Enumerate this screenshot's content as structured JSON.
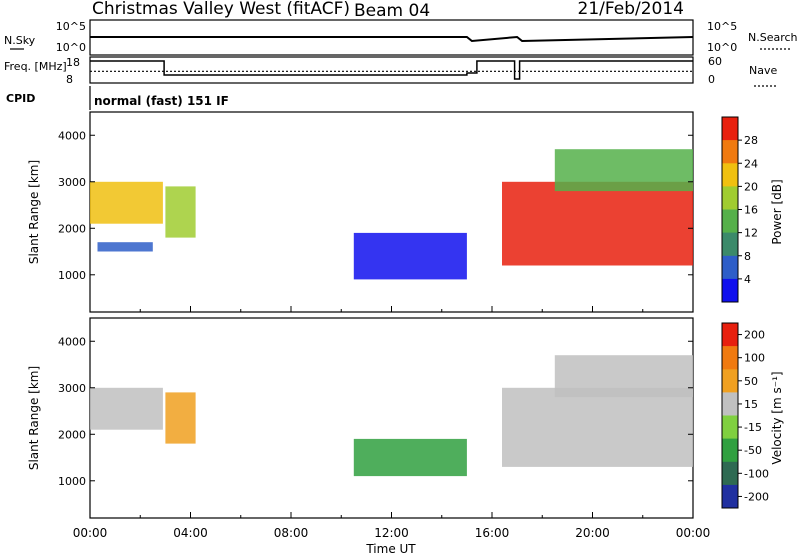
{
  "header": {
    "title": "Christmas Valley West (fitACF)",
    "beam": "Beam 04",
    "date": "21/Feb/2014"
  },
  "colors": {
    "frame": "#000000",
    "low_power_blue": "#1f3fc4",
    "high_power_red": "#e8200e",
    "ground_scatter_grey": "#c0c0c0"
  },
  "chart_data": [
    {
      "type": "line",
      "name": "noise-panel",
      "ylabel_left": "N.Sky",
      "ylabel_right": "N.Search",
      "yticks_left": [
        "10^5",
        "10^0"
      ],
      "yticks_right": [
        "10^5",
        "10^0"
      ],
      "series": [
        {
          "name": "N.Sky",
          "x": [
            0,
            15.0,
            15.2,
            17.0,
            17.2,
            24
          ],
          "y": [
            1.2,
            1.2,
            0.6,
            1.2,
            0.6,
            1.2
          ]
        }
      ]
    },
    {
      "type": "line",
      "name": "freq-panel",
      "ylabel_left": "Freq. [MHz]",
      "ylabel_right": "Nave",
      "yticks_left": [
        "18",
        "8"
      ],
      "yticks_right": [
        "60",
        "0"
      ],
      "series": [
        {
          "name": "Freq",
          "x": [
            0,
            2.95,
            2.95,
            15.0,
            15.0,
            15.4,
            15.4,
            16.9,
            16.9,
            17.1,
            17.1,
            24
          ],
          "y": [
            17,
            17,
            10,
            10,
            11,
            11,
            17,
            17,
            8,
            8,
            17,
            17
          ]
        },
        {
          "name": "Nave",
          "x": [
            0,
            24
          ],
          "y": [
            28,
            28
          ]
        }
      ]
    },
    {
      "type": "text",
      "name": "cpid",
      "label": "CPID",
      "value": "normal (fast) 151 IF"
    },
    {
      "type": "heatmap",
      "name": "power",
      "ylabel": "Slant Range [km]",
      "xlim": [
        0,
        24
      ],
      "ylim": [
        200,
        4500
      ],
      "yticks": [
        1000,
        2000,
        3000,
        4000
      ],
      "colorbar": {
        "label": "Power [dB]",
        "ticks": [
          "4",
          "8",
          "12",
          "16",
          "20",
          "24",
          "28"
        ],
        "colors": [
          "#1010ee",
          "#2e5ec8",
          "#3b8a6a",
          "#55b04a",
          "#a0cc30",
          "#f0c010",
          "#f07a10",
          "#e8200e"
        ]
      },
      "regions": [
        {
          "x": [
            0,
            2.9
          ],
          "range": [
            2100,
            3000
          ],
          "level": 5
        },
        {
          "x": [
            3.0,
            4.2
          ],
          "range": [
            1800,
            2900
          ],
          "level": 4
        },
        {
          "x": [
            0.3,
            2.5
          ],
          "range": [
            1500,
            1700
          ],
          "level": 1
        },
        {
          "x": [
            10.5,
            15.0
          ],
          "range": [
            900,
            1900
          ],
          "level": 0
        },
        {
          "x": [
            16.4,
            24
          ],
          "range": [
            1200,
            3000
          ],
          "level": 7
        },
        {
          "x": [
            18.5,
            24
          ],
          "range": [
            2800,
            3700
          ],
          "level": 3
        }
      ]
    },
    {
      "type": "heatmap",
      "name": "velocity",
      "ylabel": "Slant Range [km]",
      "xlim": [
        0,
        24
      ],
      "ylim": [
        200,
        4500
      ],
      "yticks": [
        1000,
        2000,
        3000,
        4000
      ],
      "xticks": [
        "00:00",
        "04:00",
        "08:00",
        "12:00",
        "16:00",
        "20:00",
        "00:00"
      ],
      "xlabel": "Time UT",
      "colorbar": {
        "label": "Velocity [m s⁻¹]",
        "ticks": [
          "200",
          "100",
          "50",
          "15",
          "-15",
          "-50",
          "-100",
          "-200"
        ],
        "colors": [
          "#2030a0",
          "#2e6a52",
          "#30a040",
          "#80d040",
          "#c0c0c0",
          "#f0a020",
          "#f07a10",
          "#e8200e"
        ]
      },
      "regions": [
        {
          "x": [
            0,
            2.9
          ],
          "range": [
            2100,
            3000
          ],
          "level": 4
        },
        {
          "x": [
            3.0,
            4.2
          ],
          "range": [
            1800,
            2900
          ],
          "level": 5
        },
        {
          "x": [
            10.5,
            15.0
          ],
          "range": [
            1100,
            1900
          ],
          "level": 2
        },
        {
          "x": [
            16.4,
            24
          ],
          "range": [
            1300,
            3000
          ],
          "level": 4
        },
        {
          "x": [
            18.5,
            24
          ],
          "range": [
            2800,
            3700
          ],
          "level": 4
        }
      ]
    }
  ]
}
